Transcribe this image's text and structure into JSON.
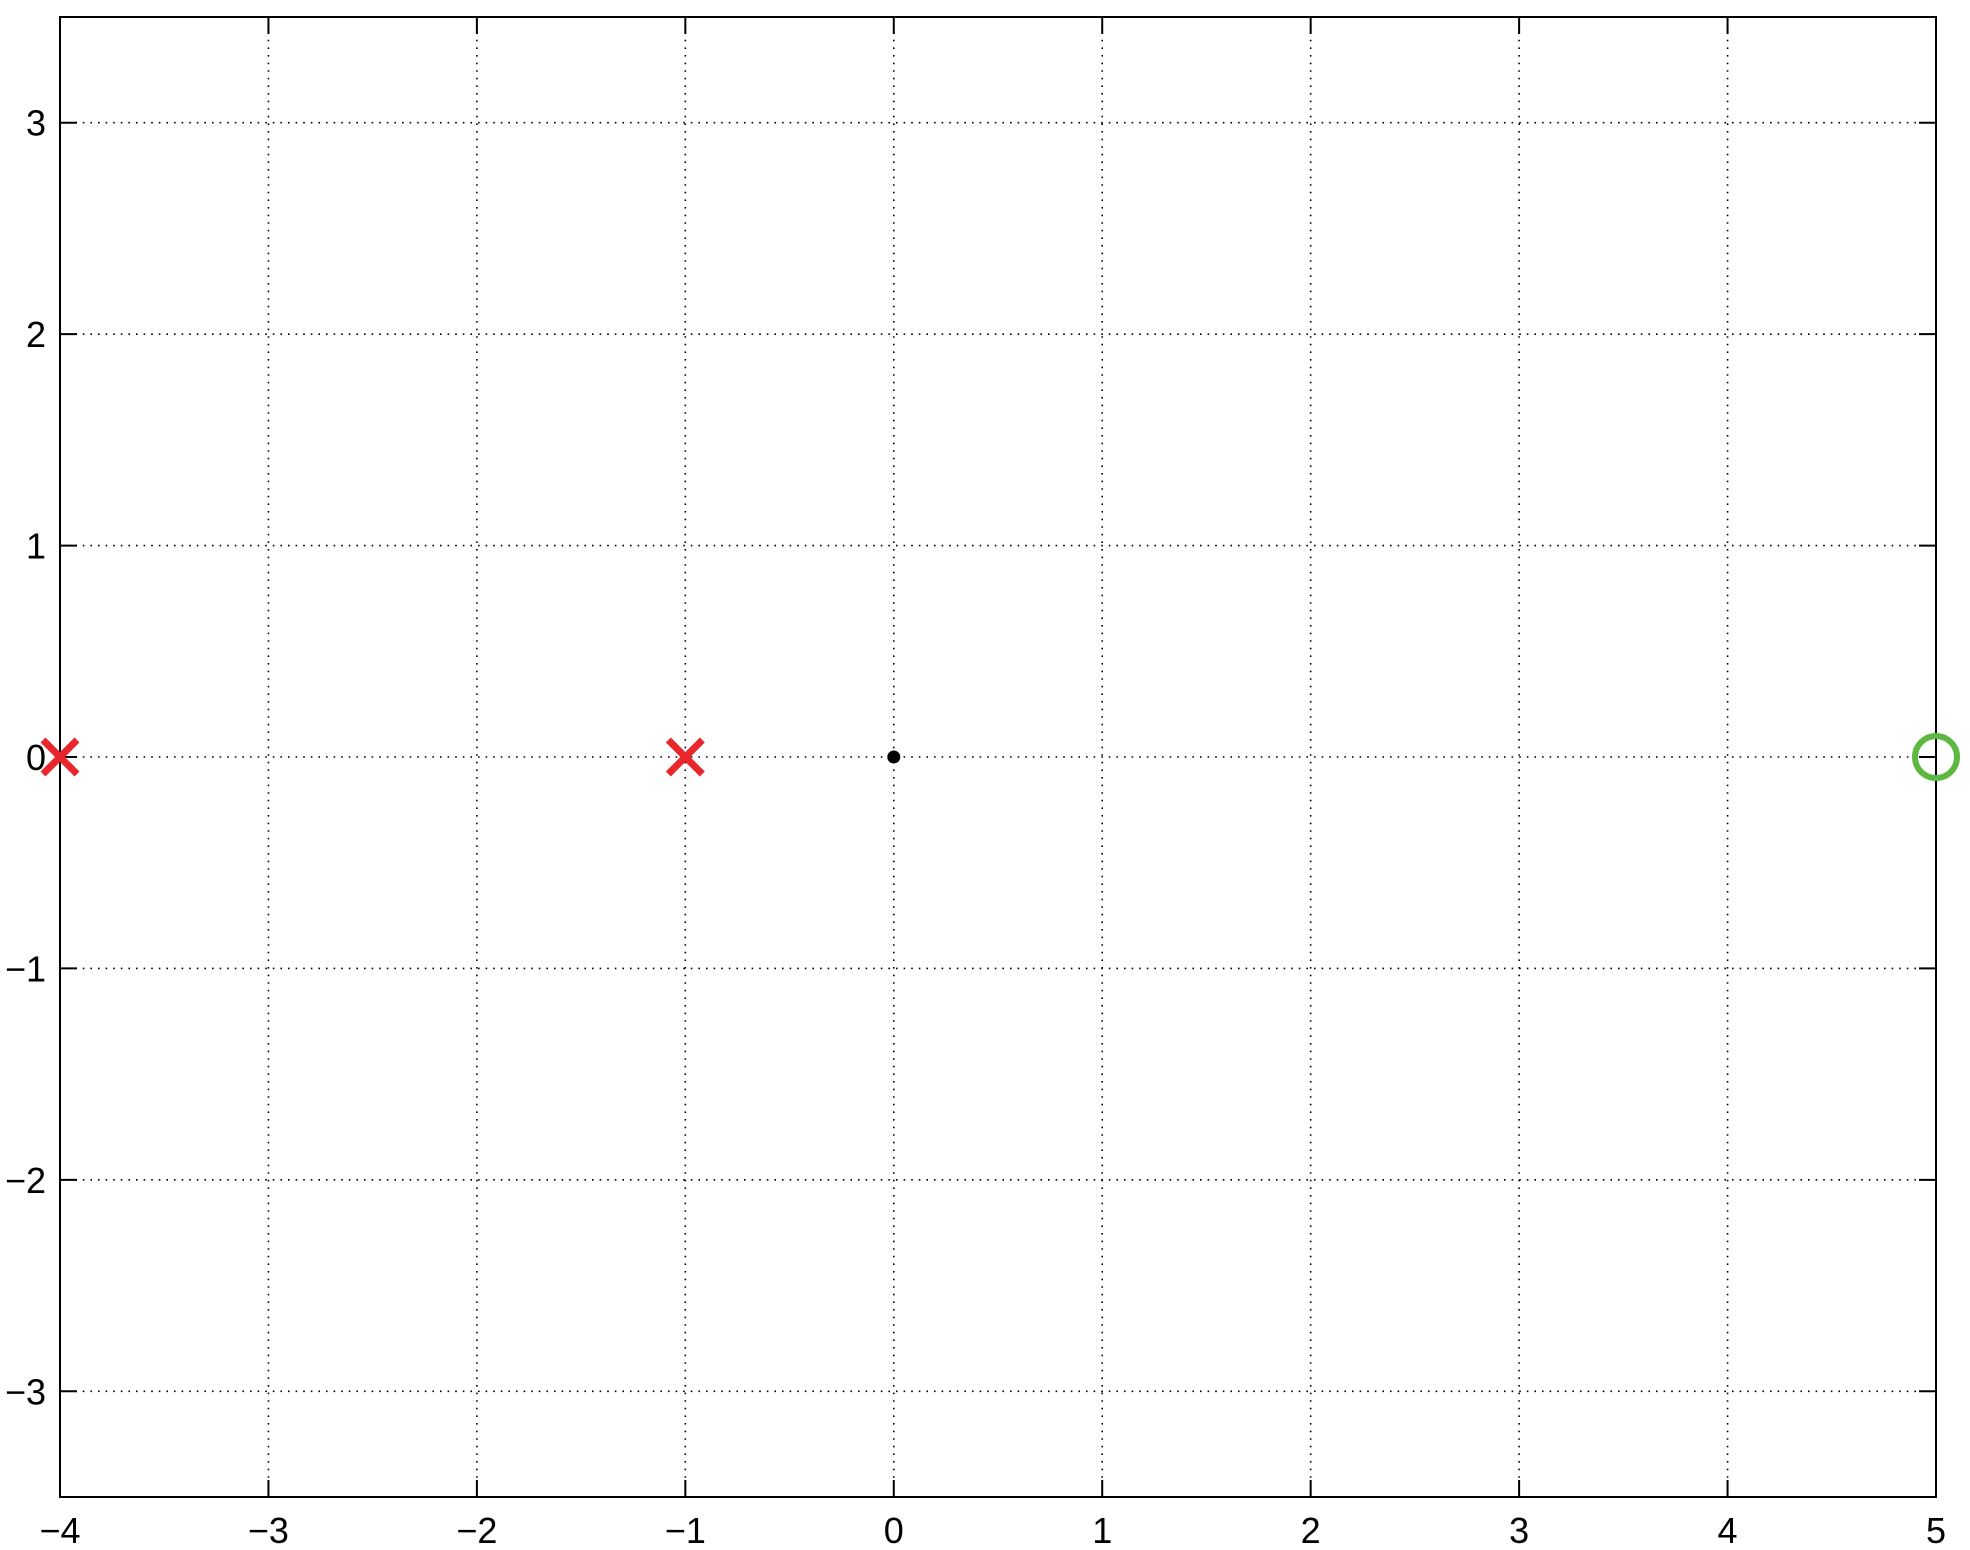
{
  "chart_data": {
    "type": "scatter",
    "title": "",
    "xlabel": "",
    "ylabel": "",
    "xlim": [
      -4,
      5
    ],
    "ylim": [
      -3.5,
      3.5
    ],
    "xticks": [
      -4,
      -3,
      -2,
      -1,
      0,
      1,
      2,
      3,
      4,
      5
    ],
    "yticks": [
      -3,
      -2,
      -1,
      0,
      1,
      2,
      3
    ],
    "xtick_labels": [
      "−4",
      "−3",
      "−2",
      "−1",
      "0",
      "1",
      "2",
      "3",
      "4",
      "5"
    ],
    "ytick_labels": [
      "−3",
      "−2",
      "−1",
      "0",
      "1",
      "2",
      "3"
    ],
    "grid": true,
    "legend": "none",
    "series": [
      {
        "marker": "x",
        "marker_icon": "cross-icon",
        "color": "#e8262b",
        "points": [
          {
            "x": -4,
            "y": 0
          },
          {
            "x": -1,
            "y": 0
          }
        ]
      },
      {
        "marker": "o",
        "marker_icon": "circle-icon",
        "color": "#5cb840",
        "points": [
          {
            "x": 5,
            "y": 0
          }
        ]
      },
      {
        "marker": ".",
        "marker_icon": "dot-icon",
        "color": "#000000",
        "points": [
          {
            "x": 0,
            "y": 0
          }
        ]
      }
    ]
  }
}
